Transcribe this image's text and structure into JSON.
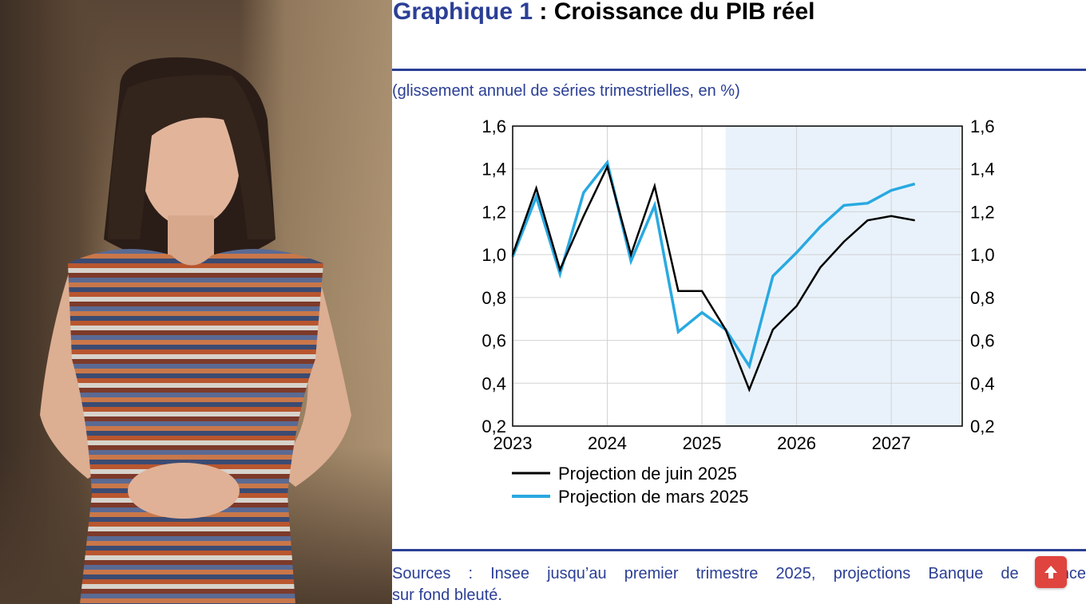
{
  "slide": {
    "title_prefix": "Graphique 1",
    "title_rest": " : Croissance du PIB réel",
    "subtitle": "(glissement annuel de séries trimestrielles, en %)",
    "sources_line1": "Sources : Insee jusqu’au premier trimestre 2025, projections Banque de France",
    "sources_line2": "sur fond bleuté."
  },
  "colors": {
    "accent_blue": "#2b3f95",
    "projection_shade": "#e9f2fb",
    "series_black": "#000000",
    "series_cyan": "#29a9e1",
    "fab": "#e0443f"
  },
  "chart_data": {
    "type": "line",
    "title": "Croissance du PIB réel",
    "ylabel": "",
    "xlabel": "",
    "ylim": [
      0.2,
      1.6
    ],
    "xlim": [
      2023.0,
      2027.75
    ],
    "x_ticks": [
      "2023",
      "2024",
      "2025",
      "2026",
      "2027"
    ],
    "y_ticks": [
      "0,2",
      "0,4",
      "0,6",
      "0,8",
      "1,0",
      "1,2",
      "1,4",
      "1,6"
    ],
    "projection_shade_start": 2025.25,
    "grid": true,
    "legend_position": "bottom-left",
    "x": [
      2023.0,
      2023.25,
      2023.5,
      2023.75,
      2024.0,
      2024.25,
      2024.5,
      2024.75,
      2025.0,
      2025.25,
      2025.5,
      2025.75,
      2026.0,
      2026.25,
      2026.5,
      2026.75,
      2027.0,
      2027.25
    ],
    "series": [
      {
        "name": "Projection de juin 2025",
        "color": "#000000",
        "values": [
          1.0,
          1.31,
          0.93,
          1.18,
          1.41,
          1.0,
          1.32,
          0.83,
          0.83,
          0.65,
          0.37,
          0.65,
          0.76,
          0.94,
          1.06,
          1.16,
          1.18,
          1.16
        ]
      },
      {
        "name": "Projection de mars 2025",
        "color": "#29a9e1",
        "values": [
          0.99,
          1.27,
          0.91,
          1.29,
          1.43,
          0.97,
          1.23,
          0.64,
          0.73,
          0.65,
          0.48,
          0.9,
          1.01,
          1.13,
          1.23,
          1.24,
          1.3,
          1.33
        ]
      }
    ]
  }
}
